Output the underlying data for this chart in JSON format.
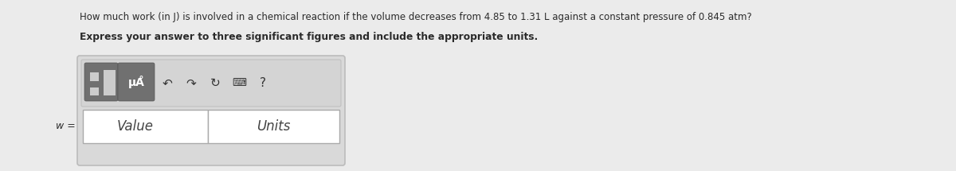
{
  "fig_bg_color": "#ebebeb",
  "line1": "How much work (in J) is involved in a chemical reaction if the volume decreases from 4.85 to 1.31 L against a constant pressure of 0.845 atm?",
  "line2": "Express your answer to three significant figures and include the appropriate units.",
  "label_w": "w =",
  "placeholder_value": "Value",
  "placeholder_units": "Units",
  "text_color": "#2a2a2a",
  "placeholder_color": "#444444",
  "outer_box_facecolor": "#d9d9d9",
  "outer_box_edgecolor": "#bbbbbb",
  "toolbar_bg": "#d0d0d0",
  "btn_dark": "#707070",
  "btn_edge": "#555555",
  "input_bg": "#ffffff",
  "input_edge": "#aaaaaa"
}
